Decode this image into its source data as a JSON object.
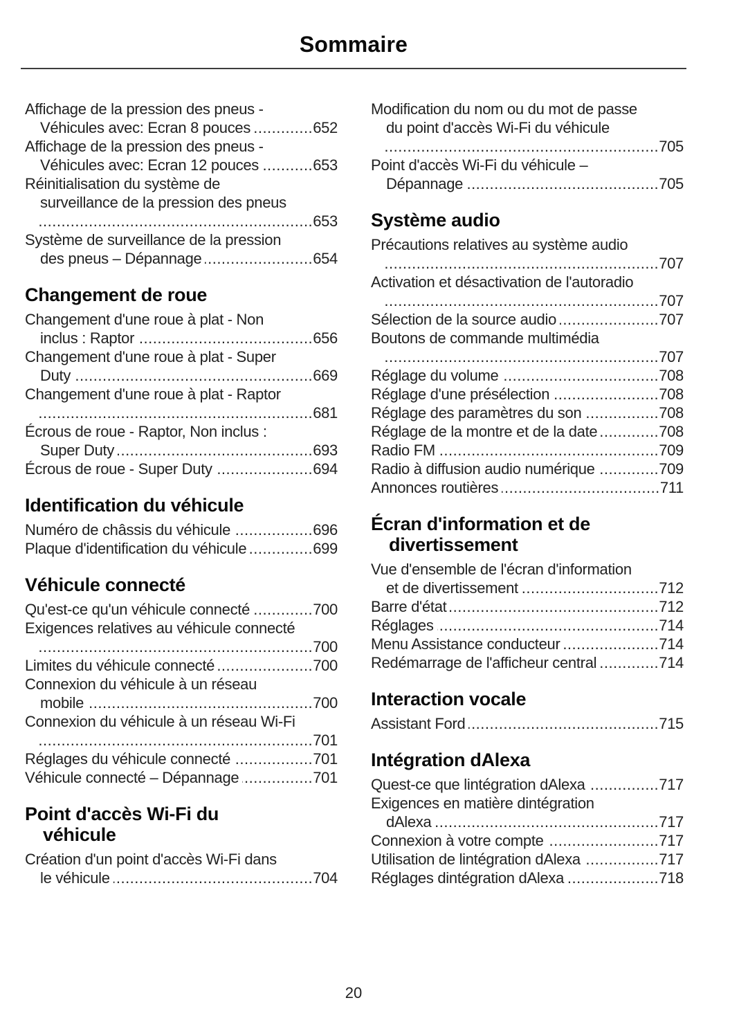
{
  "page_title": "Sommaire",
  "page_number": "20",
  "columns": [
    {
      "sections": [
        {
          "title_lines": [],
          "entries": [
            {
              "pre": [
                "Affichage de la pression des pneus -"
              ],
              "last": "Véhicules avec: Ecran 8 pouces",
              "indent": "cont",
              "page": "652"
            },
            {
              "pre": [
                "Affichage de la pression des pneus -"
              ],
              "last": "Véhicules avec: Ecran 12 pouces",
              "indent": "cont",
              "page": "653"
            },
            {
              "pre": [
                "Réinitialisation du système de",
                "surveillance de la pression des pneus"
              ],
              "last": "",
              "indent": "dots",
              "page": "653"
            },
            {
              "pre": [
                "Système de surveillance de la pression"
              ],
              "last": "des pneus – Dépannage",
              "indent": "cont",
              "page": "654"
            }
          ]
        },
        {
          "title_lines": [
            "Changement de roue"
          ],
          "entries": [
            {
              "pre": [
                "Changement d'une roue à plat - Non"
              ],
              "last": "inclus : Raptor",
              "indent": "cont",
              "page": "656"
            },
            {
              "pre": [
                "Changement d'une roue à plat - Super"
              ],
              "last": "Duty",
              "indent": "cont",
              "page": "669"
            },
            {
              "pre": [
                "Changement d'une roue à plat - Raptor"
              ],
              "last": "",
              "indent": "dots",
              "page": "681"
            },
            {
              "pre": [
                "Écrous de roue - Raptor, Non inclus :"
              ],
              "last": "Super Duty",
              "indent": "cont",
              "page": "693"
            },
            {
              "pre": [],
              "last": "Écrous de roue - Super Duty",
              "indent": "none",
              "page": "694"
            }
          ]
        },
        {
          "title_lines": [
            "Identification du véhicule"
          ],
          "entries": [
            {
              "pre": [],
              "last": "Numéro de châssis du véhicule",
              "indent": "none",
              "page": "696"
            },
            {
              "pre": [],
              "last": "Plaque d'identification du véhicule",
              "indent": "none",
              "page": "699"
            }
          ]
        },
        {
          "title_lines": [
            "Véhicule connecté"
          ],
          "entries": [
            {
              "pre": [],
              "last": "Qu'est-ce qu'un véhicule connecté",
              "indent": "none",
              "page": "700"
            },
            {
              "pre": [
                "Exigences relatives au véhicule connecté"
              ],
              "last": "",
              "indent": "dots",
              "page": "700"
            },
            {
              "pre": [],
              "last": "Limites du véhicule connecté",
              "indent": "none",
              "page": "700"
            },
            {
              "pre": [
                "Connexion du véhicule à un réseau"
              ],
              "last": "mobile",
              "indent": "cont",
              "page": "700"
            },
            {
              "pre": [
                "Connexion du véhicule à un réseau Wi-Fi"
              ],
              "last": "",
              "indent": "dots",
              "page": "701"
            },
            {
              "pre": [],
              "last": "Réglages du véhicule connecté",
              "indent": "none",
              "page": "701"
            },
            {
              "pre": [],
              "last": "Véhicule connecté – Dépannage",
              "indent": "none",
              "page": "701"
            }
          ]
        },
        {
          "title_lines": [
            "Point d'accès Wi-Fi du",
            "véhicule"
          ],
          "entries": [
            {
              "pre": [
                "Création d'un point d'accès Wi-Fi dans"
              ],
              "last": "le véhicule",
              "indent": "cont",
              "page": "704"
            }
          ]
        }
      ]
    },
    {
      "sections": [
        {
          "title_lines": [],
          "entries": [
            {
              "pre": [
                "Modification du nom ou du mot de passe",
                "du point d'accès Wi-Fi du véhicule"
              ],
              "last": "",
              "indent": "dots",
              "page": "705"
            },
            {
              "pre": [
                "Point d'accès Wi-Fi du véhicule –"
              ],
              "last": "Dépannage",
              "indent": "cont",
              "page": "705"
            }
          ]
        },
        {
          "title_lines": [
            "Système audio"
          ],
          "entries": [
            {
              "pre": [
                "Précautions relatives au système audio"
              ],
              "last": "",
              "indent": "dots",
              "page": "707"
            },
            {
              "pre": [
                "Activation et désactivation de l'autoradio"
              ],
              "last": "",
              "indent": "dots",
              "page": "707"
            },
            {
              "pre": [],
              "last": "Sélection de la source audio",
              "indent": "none",
              "page": "707"
            },
            {
              "pre": [
                "Boutons de commande multimédia"
              ],
              "last": "",
              "indent": "dots",
              "page": "707"
            },
            {
              "pre": [],
              "last": "Réglage du volume",
              "indent": "none",
              "page": "708"
            },
            {
              "pre": [],
              "last": "Réglage d'une présélection",
              "indent": "none",
              "page": "708"
            },
            {
              "pre": [],
              "last": "Réglage des paramètres du son",
              "indent": "none",
              "page": "708"
            },
            {
              "pre": [],
              "last": "Réglage de la montre et de la date",
              "indent": "none",
              "page": "708"
            },
            {
              "pre": [],
              "last": "Radio FM",
              "indent": "none",
              "page": "709"
            },
            {
              "pre": [],
              "last": "Radio à diffusion audio numérique",
              "indent": "none",
              "page": "709"
            },
            {
              "pre": [],
              "last": "Annonces routières",
              "indent": "none",
              "page": "711"
            }
          ]
        },
        {
          "title_lines": [
            "Écran d'information et de",
            "divertissement"
          ],
          "entries": [
            {
              "pre": [
                "Vue d'ensemble de l'écran d'information"
              ],
              "last": "et de divertissement",
              "indent": "cont",
              "page": "712"
            },
            {
              "pre": [],
              "last": "Barre d'état",
              "indent": "none",
              "page": "712"
            },
            {
              "pre": [],
              "last": "Réglages",
              "indent": "none",
              "page": "714"
            },
            {
              "pre": [],
              "last": "Menu Assistance conducteur",
              "indent": "none",
              "page": "714"
            },
            {
              "pre": [],
              "last": "Redémarrage de l'afficheur central",
              "indent": "none",
              "page": "714"
            }
          ]
        },
        {
          "title_lines": [
            "Interaction vocale"
          ],
          "entries": [
            {
              "pre": [],
              "last": "Assistant Ford",
              "indent": "none",
              "page": "715"
            }
          ]
        },
        {
          "title_lines": [
            "Intégration dAlexa"
          ],
          "entries": [
            {
              "pre": [],
              "last": "Quest-ce que lintégration dAlexa",
              "indent": "none",
              "page": "717"
            },
            {
              "pre": [
                "Exigences en matière dintégration"
              ],
              "last": "dAlexa",
              "indent": "cont",
              "page": "717"
            },
            {
              "pre": [],
              "last": "Connexion à votre compte",
              "indent": "none",
              "page": "717"
            },
            {
              "pre": [],
              "last": "Utilisation de lintégration dAlexa",
              "indent": "none",
              "page": "717"
            },
            {
              "pre": [],
              "last": "Réglages dintégration dAlexa",
              "indent": "none",
              "page": "718"
            }
          ]
        }
      ]
    }
  ]
}
